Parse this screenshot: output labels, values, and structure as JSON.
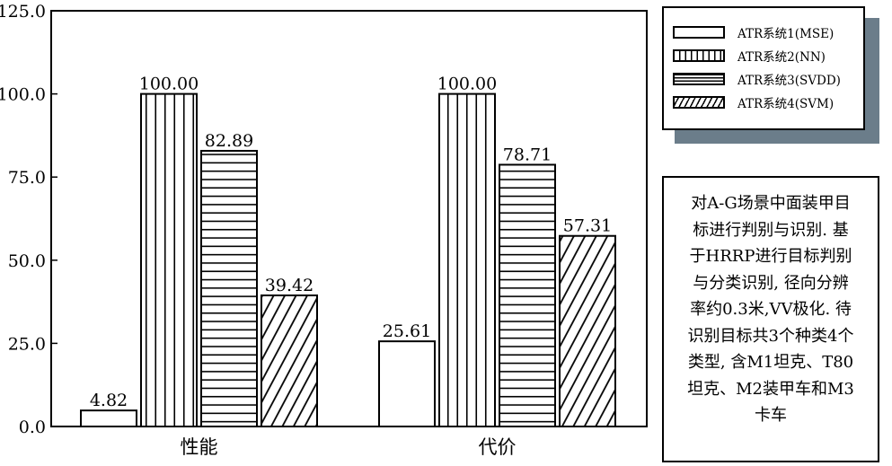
{
  "chart_data": {
    "type": "bar",
    "categories": [
      "性能",
      "代价"
    ],
    "series": [
      {
        "name": "ATR系统1(MSE)",
        "values": [
          4.82,
          25.61
        ],
        "labels": [
          "4.82",
          "25.61"
        ],
        "pattern": "blank"
      },
      {
        "name": "ATR系统2(NN)",
        "values": [
          100.0,
          100.0
        ],
        "labels": [
          "100.00",
          "100.00"
        ],
        "pattern": "vertical"
      },
      {
        "name": "ATR系统3(SVDD)",
        "values": [
          82.89,
          78.71
        ],
        "labels": [
          "82.89",
          "78.71"
        ],
        "pattern": "horizontal"
      },
      {
        "name": "ATR系统4(SVM)",
        "values": [
          39.42,
          57.31
        ],
        "labels": [
          "39.42",
          "57.31"
        ],
        "pattern": "diagonal"
      }
    ],
    "ylim": [
      0,
      125
    ],
    "yticks": [
      "0.0",
      "25.0",
      "50.0",
      "75.0",
      "100.0",
      "125.0"
    ],
    "grid": false,
    "legend_position": "top-right, outside plot"
  },
  "note": {
    "lines": [
      "对A-G场景中面装甲目",
      "标进行判别与识别. 基",
      "于HRRP进行目标判别",
      "与分类识别, 径向分辨",
      "率约0.3米,VV极化. 待",
      "识别目标共3个种类4个",
      "类型, 含M1坦克、T80",
      "坦克、M2装甲车和M3",
      "卡车"
    ]
  }
}
